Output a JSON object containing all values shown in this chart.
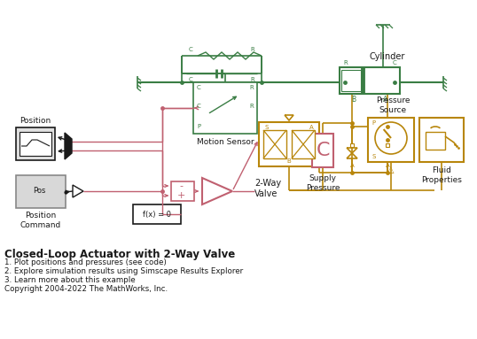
{
  "title": "Closed-Loop Actuator with 2-Way Valve",
  "bg": "#ffffff",
  "green": "#3a7d44",
  "gold": "#b8860b",
  "pink": "#c06070",
  "dark": "#1a1a1a",
  "gray": "#888888",
  "items": [
    "1. Plot positions and pressures (see code)",
    "2. Explore simulation results using Simscape Results Explorer",
    "3. Learn more about this example"
  ],
  "copyright": "Copyright 2004-2022 The MathWorks, Inc."
}
